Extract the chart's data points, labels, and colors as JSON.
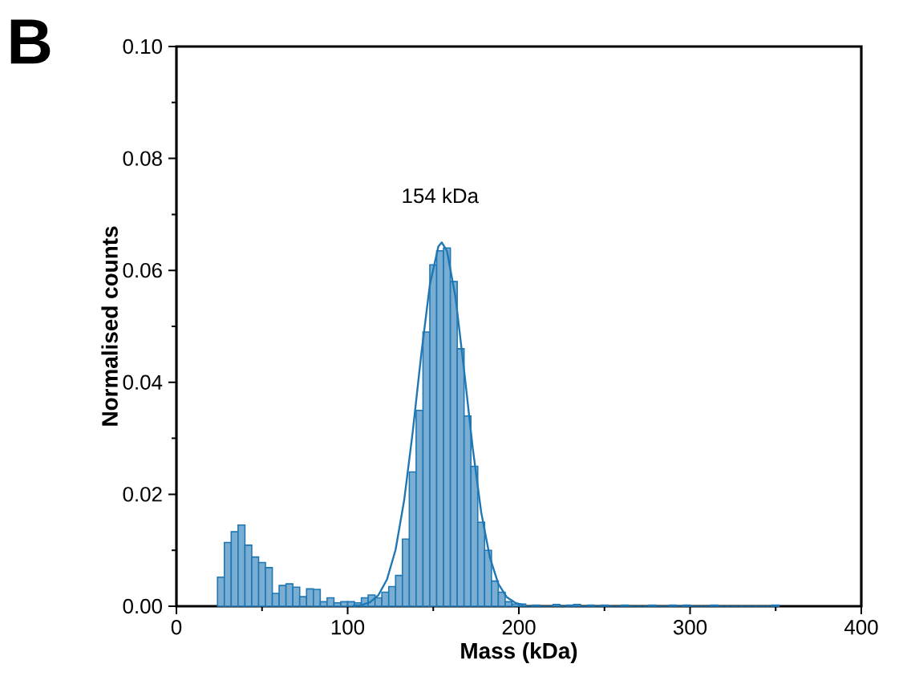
{
  "chart_data": {
    "type": "histogram",
    "xlabel": "Mass (kDa)",
    "ylabel": "Normalised counts",
    "annotations": [
      "B",
      "154 kDa"
    ],
    "xlim": [
      0,
      400
    ],
    "ylim": [
      0,
      0.1
    ],
    "xticks": [
      0,
      100,
      200,
      300,
      400
    ],
    "yticks": [
      {
        "value": 0,
        "label": "0.00"
      },
      {
        "value": 0.02,
        "label": "0.02"
      },
      {
        "value": 0.04,
        "label": "0.04"
      },
      {
        "value": 0.06,
        "label": "0.06"
      },
      {
        "value": 0.08,
        "label": "0.08"
      },
      {
        "value": 0.1,
        "label": "0.10"
      }
    ],
    "series": [
      {
        "color": "#1f77b4",
        "bins": [
          24,
          28,
          32,
          36,
          40,
          44,
          48,
          52,
          56,
          60,
          64,
          68,
          72,
          76,
          80,
          84,
          88,
          92,
          96,
          100,
          104,
          108,
          112,
          116,
          120,
          124,
          128,
          132,
          136,
          140,
          144,
          148,
          152,
          156,
          160,
          164,
          168,
          172,
          176,
          180,
          184,
          188,
          192,
          196,
          200,
          204,
          208,
          212,
          216,
          220,
          224,
          228,
          232,
          236,
          240,
          244,
          248,
          252,
          256,
          260,
          264,
          268,
          272,
          276,
          280,
          284,
          288,
          292,
          296,
          300,
          304,
          308,
          312,
          316,
          320,
          324,
          328,
          332,
          336,
          340,
          344,
          348,
          352
        ],
        "values": [
          0.0052,
          0.0114,
          0.0133,
          0.0145,
          0.0109,
          0.0088,
          0.0078,
          0.0069,
          0.0023,
          0.0037,
          0.004,
          0.0034,
          0.0017,
          0.0031,
          0.003,
          0.0008,
          0.0015,
          0.0006,
          0.0008,
          0.0008,
          0.0006,
          0.0015,
          0.002,
          0.0015,
          0.0025,
          0.0035,
          0.0055,
          0.012,
          0.024,
          0.035,
          0.049,
          0.061,
          0.0635,
          0.064,
          0.058,
          0.046,
          0.034,
          0.025,
          0.015,
          0.01,
          0.0045,
          0.0025,
          0.0008,
          0.0004,
          0.0004,
          0,
          0.0002,
          0,
          0,
          0.0003,
          0,
          0.0002,
          0.0003,
          0,
          0.0002,
          0,
          0.0002,
          0,
          0,
          0.0002,
          0,
          0,
          0,
          0.0002,
          0,
          0,
          0.0002,
          0,
          0.0002,
          0,
          0,
          0,
          0.0002,
          0,
          0,
          0,
          0,
          0,
          0,
          0,
          0,
          0.0002
        ]
      },
      {
        "type": "line",
        "color": "#1f77b4",
        "x": [
          103,
          108,
          113,
          118,
          123,
          128,
          133,
          138,
          143,
          148,
          153,
          155,
          158,
          163,
          168,
          173,
          178,
          183,
          188,
          193,
          198,
          203
        ],
        "values": [
          0.0001,
          0.0002,
          0.0007,
          0.002,
          0.0048,
          0.0101,
          0.0189,
          0.0311,
          0.045,
          0.0574,
          0.0643,
          0.065,
          0.0635,
          0.0552,
          0.0422,
          0.0284,
          0.0168,
          0.0088,
          0.004,
          0.0016,
          0.0006,
          0.0002
        ]
      }
    ]
  }
}
